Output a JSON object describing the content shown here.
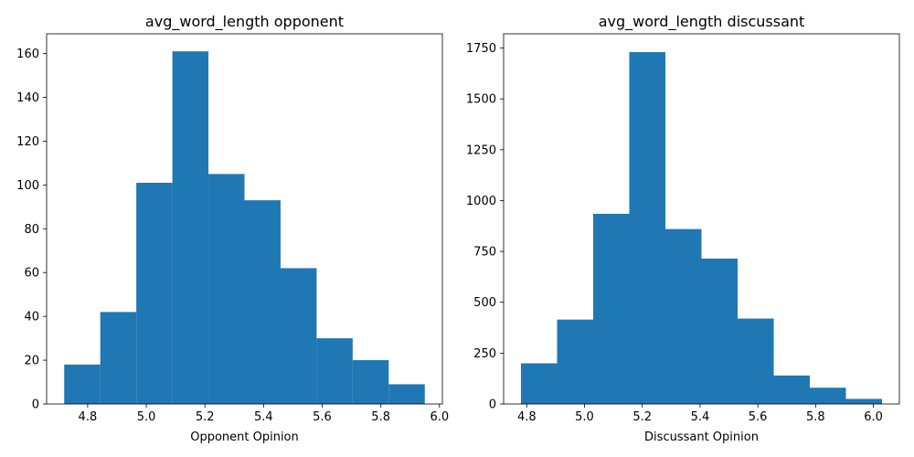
{
  "chart_data": [
    {
      "type": "bar",
      "title": "avg_word_length opponent",
      "xlabel": "Opponent Opinion",
      "ylabel": "",
      "xlim": [
        4.66,
        6.01
      ],
      "ylim": [
        0,
        169
      ],
      "xticks": [
        4.8,
        5.0,
        5.2,
        5.4,
        5.6,
        5.8,
        6.0
      ],
      "xtick_labels": [
        "4.8",
        "5.0",
        "5.2",
        "5.4",
        "5.6",
        "5.8",
        "6.0"
      ],
      "yticks": [
        0,
        20,
        40,
        60,
        80,
        100,
        120,
        140,
        160
      ],
      "ytick_labels": [
        "0",
        "20",
        "40",
        "60",
        "80",
        "100",
        "120",
        "140",
        "160"
      ],
      "bin_edges": [
        4.72,
        4.843,
        4.966,
        5.089,
        5.212,
        5.335,
        5.458,
        5.581,
        5.704,
        5.827,
        5.95
      ],
      "values": [
        18,
        42,
        101,
        161,
        105,
        93,
        62,
        30,
        20,
        9
      ],
      "color": "#1f77b4",
      "grid": false
    },
    {
      "type": "bar",
      "title": "avg_word_length discussant",
      "xlabel": "Discussant Opinion",
      "ylabel": "",
      "xlim": [
        4.72,
        6.09
      ],
      "ylim": [
        0,
        1820
      ],
      "xticks": [
        4.8,
        5.0,
        5.2,
        5.4,
        5.6,
        5.8,
        6.0
      ],
      "xtick_labels": [
        "4.8",
        "5.0",
        "5.2",
        "5.4",
        "5.6",
        "5.8",
        "6.0"
      ],
      "yticks": [
        0,
        250,
        500,
        750,
        1000,
        1250,
        1500,
        1750
      ],
      "ytick_labels": [
        "0",
        "250",
        "500",
        "750",
        "1000",
        "1250",
        "1500",
        "1750"
      ],
      "bin_edges": [
        4.78,
        4.905,
        5.03,
        5.155,
        5.28,
        5.405,
        5.53,
        5.655,
        5.78,
        5.905,
        6.03
      ],
      "values": [
        200,
        415,
        935,
        1730,
        860,
        715,
        420,
        140,
        80,
        25
      ],
      "color": "#1f77b4",
      "grid": false
    }
  ]
}
